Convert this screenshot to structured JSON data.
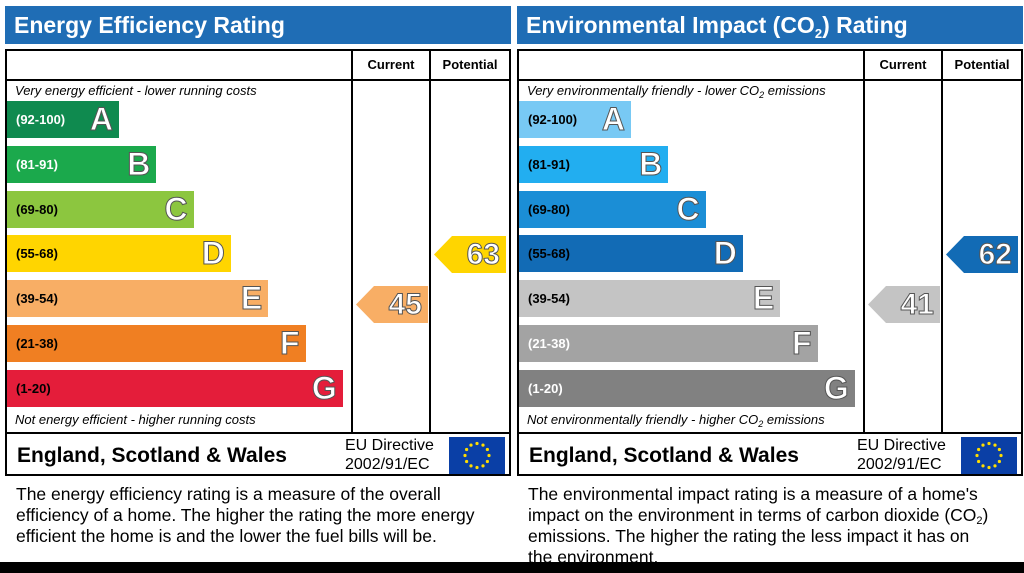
{
  "energy": {
    "title": "Energy Efficiency Rating",
    "col_current": "Current",
    "col_potential": "Potential",
    "note_top": "Very energy efficient - lower running costs",
    "note_bottom": "Not energy efficient - higher running costs",
    "region": "England, Scotland & Wales",
    "directive_line1": "EU Directive",
    "directive_line2": "2002/91/EC",
    "description": "The energy efficiency rating is a measure of the overall efficiency of a home. The higher the rating the more energy efficient the home is and the lower the fuel bills will be.",
    "current_value": "45",
    "potential_value": "63"
  },
  "environment": {
    "title_pre": "Environmental Impact (CO",
    "title_sub": "2",
    "title_post": ") Rating",
    "col_current": "Current",
    "col_potential": "Potential",
    "note_top_pre": "Very environmentally friendly - lower CO",
    "note_top_sub": "2",
    "note_top_post": " emissions",
    "note_bottom_pre": "Not environmentally friendly - higher CO",
    "note_bottom_sub": "2",
    "note_bottom_post": " emissions",
    "region": "England, Scotland & Wales",
    "directive_line1": "EU Directive",
    "directive_line2": "2002/91/EC",
    "description_pre": "The environmental impact rating is a measure of a home's impact on the environment in terms of carbon dioxide (CO",
    "description_sub": "2",
    "description_post": ") emissions. The higher the rating the less impact it has on the environment.",
    "current_value": "41",
    "potential_value": "62"
  },
  "chart_data": [
    {
      "type": "bar",
      "title": "Energy Efficiency Rating",
      "categories": [
        "A",
        "B",
        "C",
        "D",
        "E",
        "F",
        "G"
      ],
      "ranges": [
        "(92-100)",
        "(81-91)",
        "(69-80)",
        "(55-68)",
        "(39-54)",
        "(21-38)",
        "(1-20)"
      ],
      "band_colors": [
        "#0f8a4f",
        "#1ba94c",
        "#8cc63f",
        "#ffd500",
        "#f8ae65",
        "#f07f22",
        "#e41d3a"
      ],
      "range_text_colors": [
        "#ffffff",
        "#ffffff",
        "#000000",
        "#000000",
        "#000000",
        "#000000",
        "#000000"
      ],
      "series": [
        {
          "name": "Current",
          "value": 45,
          "band": "E",
          "color": "#f8ae65"
        },
        {
          "name": "Potential",
          "value": 63,
          "band": "D",
          "color": "#ffd500"
        }
      ]
    },
    {
      "type": "bar",
      "title": "Environmental Impact (CO2) Rating",
      "categories": [
        "A",
        "B",
        "C",
        "D",
        "E",
        "F",
        "G"
      ],
      "ranges": [
        "(92-100)",
        "(81-91)",
        "(69-80)",
        "(55-68)",
        "(39-54)",
        "(21-38)",
        "(1-20)"
      ],
      "band_colors": [
        "#78c9f4",
        "#22aef0",
        "#1b8ed6",
        "#126bb5",
        "#c4c4c4",
        "#a3a3a3",
        "#818181"
      ],
      "range_text_colors": [
        "#000000",
        "#000000",
        "#000000",
        "#000000",
        "#000000",
        "#ffffff",
        "#ffffff"
      ],
      "series": [
        {
          "name": "Current",
          "value": 41,
          "band": "E",
          "color": "#c4c4c4"
        },
        {
          "name": "Potential",
          "value": 62,
          "band": "D",
          "color": "#126bb5"
        }
      ]
    }
  ]
}
